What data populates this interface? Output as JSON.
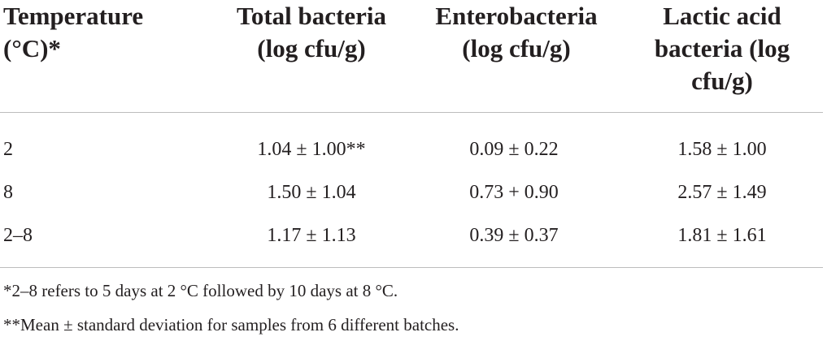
{
  "table": {
    "headers": [
      "Temperature (°C)*",
      "Total bacteria (log cfu/g)",
      "Enterobacteria (log cfu/g)",
      "Lactic acid bacteria (log cfu/g)"
    ],
    "rows": [
      [
        "2",
        "1.04 ± 1.00**",
        "0.09 ± 0.22",
        "1.58 ± 1.00"
      ],
      [
        "8",
        "1.50 ± 1.04",
        "0.73 + 0.90",
        "2.57 ± 1.49"
      ],
      [
        "2–8",
        "1.17 ± 1.13",
        "0.39 ± 0.37",
        "1.81 ± 1.61"
      ]
    ],
    "footnotes": [
      "*2–8 refers to 5 days at 2 °C followed by 10 days at 8 °C.",
      "**Mean ± standard deviation for samples from 6 different batches."
    ]
  }
}
